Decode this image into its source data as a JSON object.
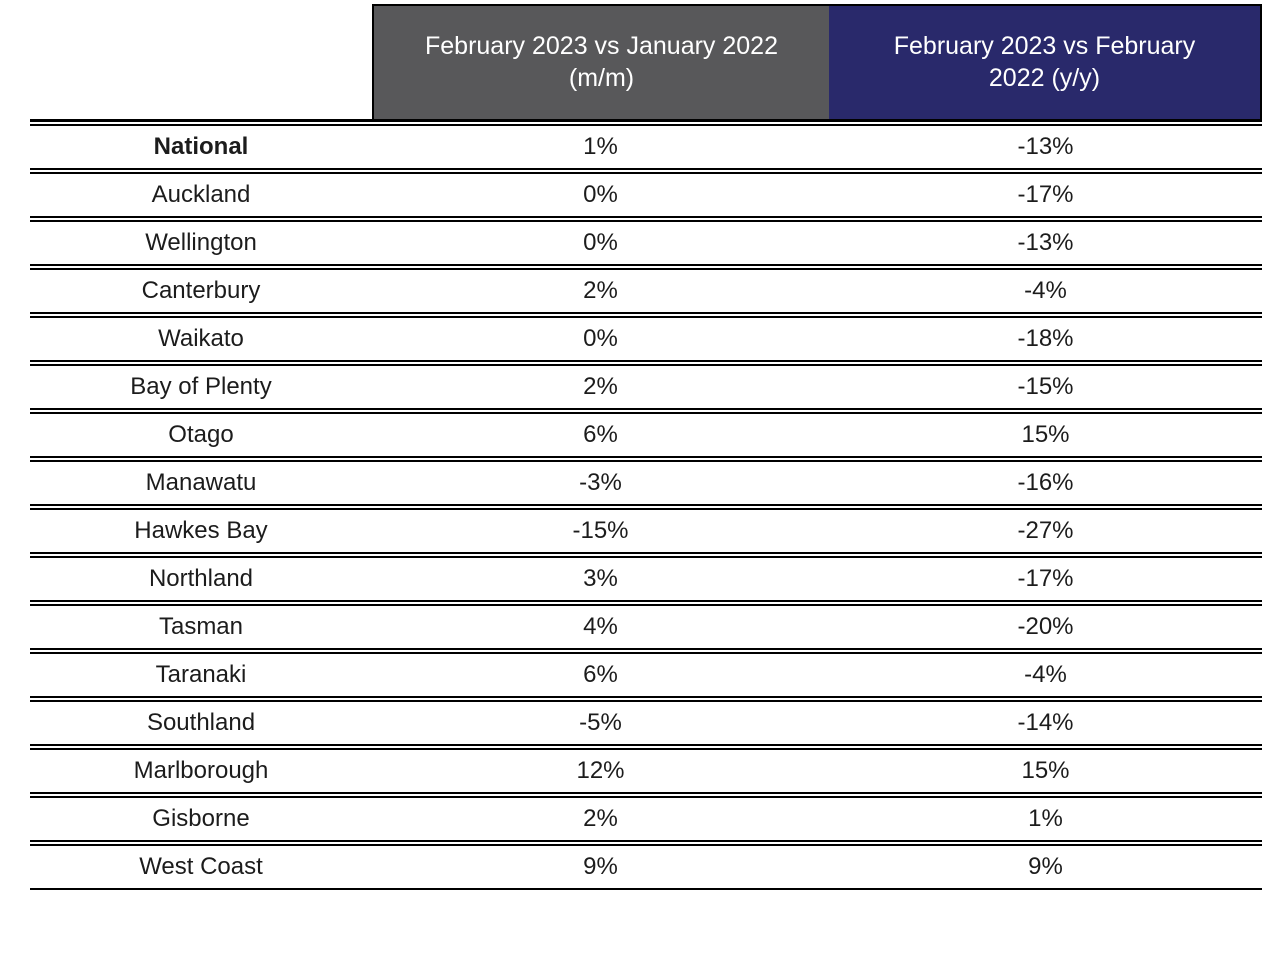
{
  "chart_data": {
    "type": "table",
    "columns": [
      {
        "label": ""
      },
      {
        "label": "February 2023 vs January 2022 (m/m)"
      },
      {
        "label": "February 2023 vs February 2022 (y/y)"
      }
    ],
    "rows": [
      {
        "region": "National",
        "mm": "1%",
        "yy": "-13%",
        "bold": true
      },
      {
        "region": "Auckland",
        "mm": "0%",
        "yy": "-17%",
        "bold": false
      },
      {
        "region": "Wellington",
        "mm": "0%",
        "yy": "-13%",
        "bold": false
      },
      {
        "region": "Canterbury",
        "mm": "2%",
        "yy": "-4%",
        "bold": false
      },
      {
        "region": "Waikato",
        "mm": "0%",
        "yy": "-18%",
        "bold": false
      },
      {
        "region": "Bay of Plenty",
        "mm": "2%",
        "yy": "-15%",
        "bold": false
      },
      {
        "region": "Otago",
        "mm": "6%",
        "yy": "15%",
        "bold": false
      },
      {
        "region": "Manawatu",
        "mm": "-3%",
        "yy": "-16%",
        "bold": false
      },
      {
        "region": "Hawkes Bay",
        "mm": "-15%",
        "yy": "-27%",
        "bold": false
      },
      {
        "region": "Northland",
        "mm": "3%",
        "yy": "-17%",
        "bold": false
      },
      {
        "region": "Tasman",
        "mm": "4%",
        "yy": "-20%",
        "bold": false
      },
      {
        "region": "Taranaki",
        "mm": "6%",
        "yy": "-4%",
        "bold": false
      },
      {
        "region": "Southland",
        "mm": "-5%",
        "yy": "-14%",
        "bold": false
      },
      {
        "region": "Marlborough",
        "mm": "12%",
        "yy": "15%",
        "bold": false
      },
      {
        "region": "Gisborne",
        "mm": "2%",
        "yy": "1%",
        "bold": false
      },
      {
        "region": "West Coast",
        "mm": "9%",
        "yy": "9%",
        "bold": false
      }
    ]
  },
  "colors": {
    "header_gray": "#58585A",
    "header_navy": "#29296B",
    "header_text": "#FFFFFF",
    "body_text": "#1C1C1C",
    "border": "#000000",
    "background": "#FFFFFF"
  }
}
